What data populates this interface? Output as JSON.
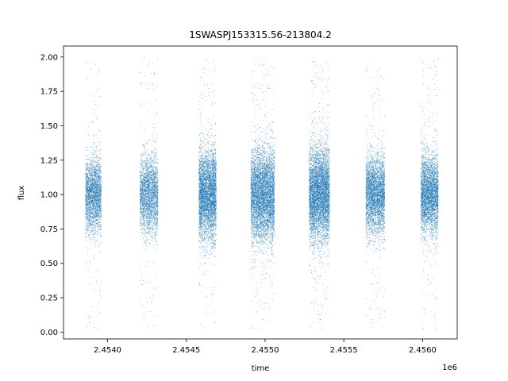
{
  "chart_data": {
    "type": "scatter",
    "title": "1SWASPJ153315.56-213804.2",
    "xlabel": "time",
    "ylabel": "flux",
    "x_offset_label": "1e6",
    "xlim": [
      2453720,
      2456220
    ],
    "ylim": [
      -0.05,
      2.08
    ],
    "x_ticks": [
      2.454,
      2.4545,
      2.455,
      2.4555,
      2.456
    ],
    "x_tick_labels": [
      "2.4540",
      "2.4545",
      "2.4550",
      "2.4555",
      "2.4560"
    ],
    "y_ticks": [
      0.0,
      0.25,
      0.5,
      0.75,
      1.0,
      1.25,
      1.5,
      1.75,
      2.0
    ],
    "y_tick_labels": [
      "0.00",
      "0.25",
      "0.50",
      "0.75",
      "1.00",
      "1.25",
      "1.50",
      "1.75",
      "2.00"
    ],
    "grid": false,
    "marker_color": "#1f77b4",
    "seasons": [
      {
        "t_start": 2453860,
        "t_end": 2453960,
        "mean_flux": 1.0,
        "flux_spread": 0.13,
        "n_points": 2600
      },
      {
        "t_start": 2454205,
        "t_end": 2454320,
        "mean_flux": 1.0,
        "flux_spread": 0.14,
        "n_points": 2600
      },
      {
        "t_start": 2454580,
        "t_end": 2454690,
        "mean_flux": 1.0,
        "flux_spread": 0.16,
        "n_points": 4200
      },
      {
        "t_start": 2454910,
        "t_end": 2455060,
        "mean_flux": 1.0,
        "flux_spread": 0.17,
        "n_points": 5200
      },
      {
        "t_start": 2455280,
        "t_end": 2455410,
        "mean_flux": 1.0,
        "flux_spread": 0.17,
        "n_points": 5200
      },
      {
        "t_start": 2455640,
        "t_end": 2455760,
        "mean_flux": 1.0,
        "flux_spread": 0.14,
        "n_points": 3500
      },
      {
        "t_start": 2455990,
        "t_end": 2456100,
        "mean_flux": 1.0,
        "flux_spread": 0.14,
        "n_points": 3500
      }
    ]
  }
}
